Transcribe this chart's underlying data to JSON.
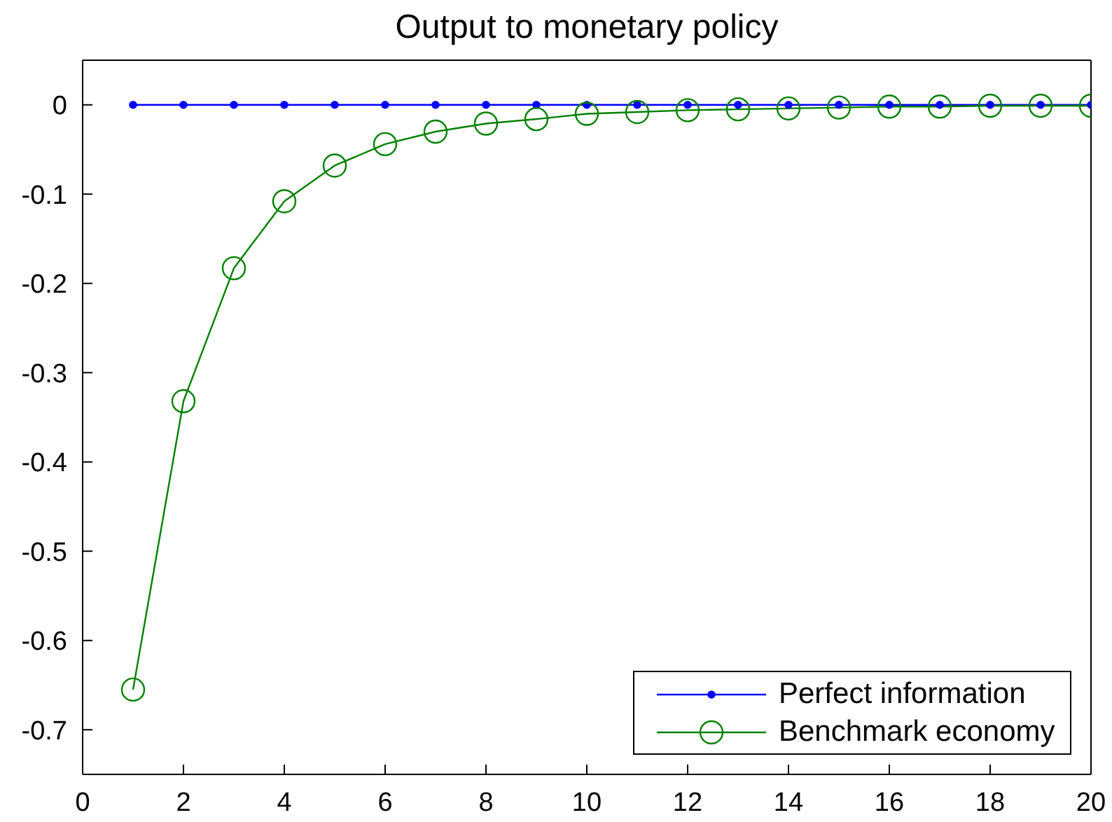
{
  "chart_data": {
    "type": "line",
    "title": "Output to monetary policy",
    "x": [
      1,
      2,
      3,
      4,
      5,
      6,
      7,
      8,
      9,
      10,
      11,
      12,
      13,
      14,
      15,
      16,
      17,
      18,
      19,
      20
    ],
    "series": [
      {
        "name": "Perfect information",
        "color": "#0000ff",
        "marker": "circle",
        "values": [
          0,
          0,
          0,
          0,
          0,
          0,
          0,
          0,
          0,
          0,
          0,
          0,
          0,
          0,
          0,
          0,
          0,
          0,
          0,
          0
        ]
      },
      {
        "name": "Benchmark economy",
        "color": "#008000",
        "marker": "circle",
        "values": [
          -0.655,
          -0.332,
          -0.183,
          -0.108,
          -0.068,
          -0.044,
          -0.03,
          -0.021,
          -0.016,
          -0.01,
          -0.008,
          -0.006,
          -0.005,
          -0.004,
          -0.003,
          -0.002,
          -0.002,
          -0.001,
          -0.001,
          -0.001
        ]
      }
    ],
    "xlim": [
      0,
      20
    ],
    "xticks": [
      0,
      2,
      4,
      6,
      8,
      10,
      12,
      14,
      16,
      18,
      20
    ],
    "ylim": [
      -0.75,
      0.05
    ],
    "yticks": [
      -0.7,
      -0.6,
      -0.5,
      -0.4,
      -0.3,
      -0.2,
      -0.1,
      0
    ],
    "grid": false,
    "legend": "bottom right"
  }
}
